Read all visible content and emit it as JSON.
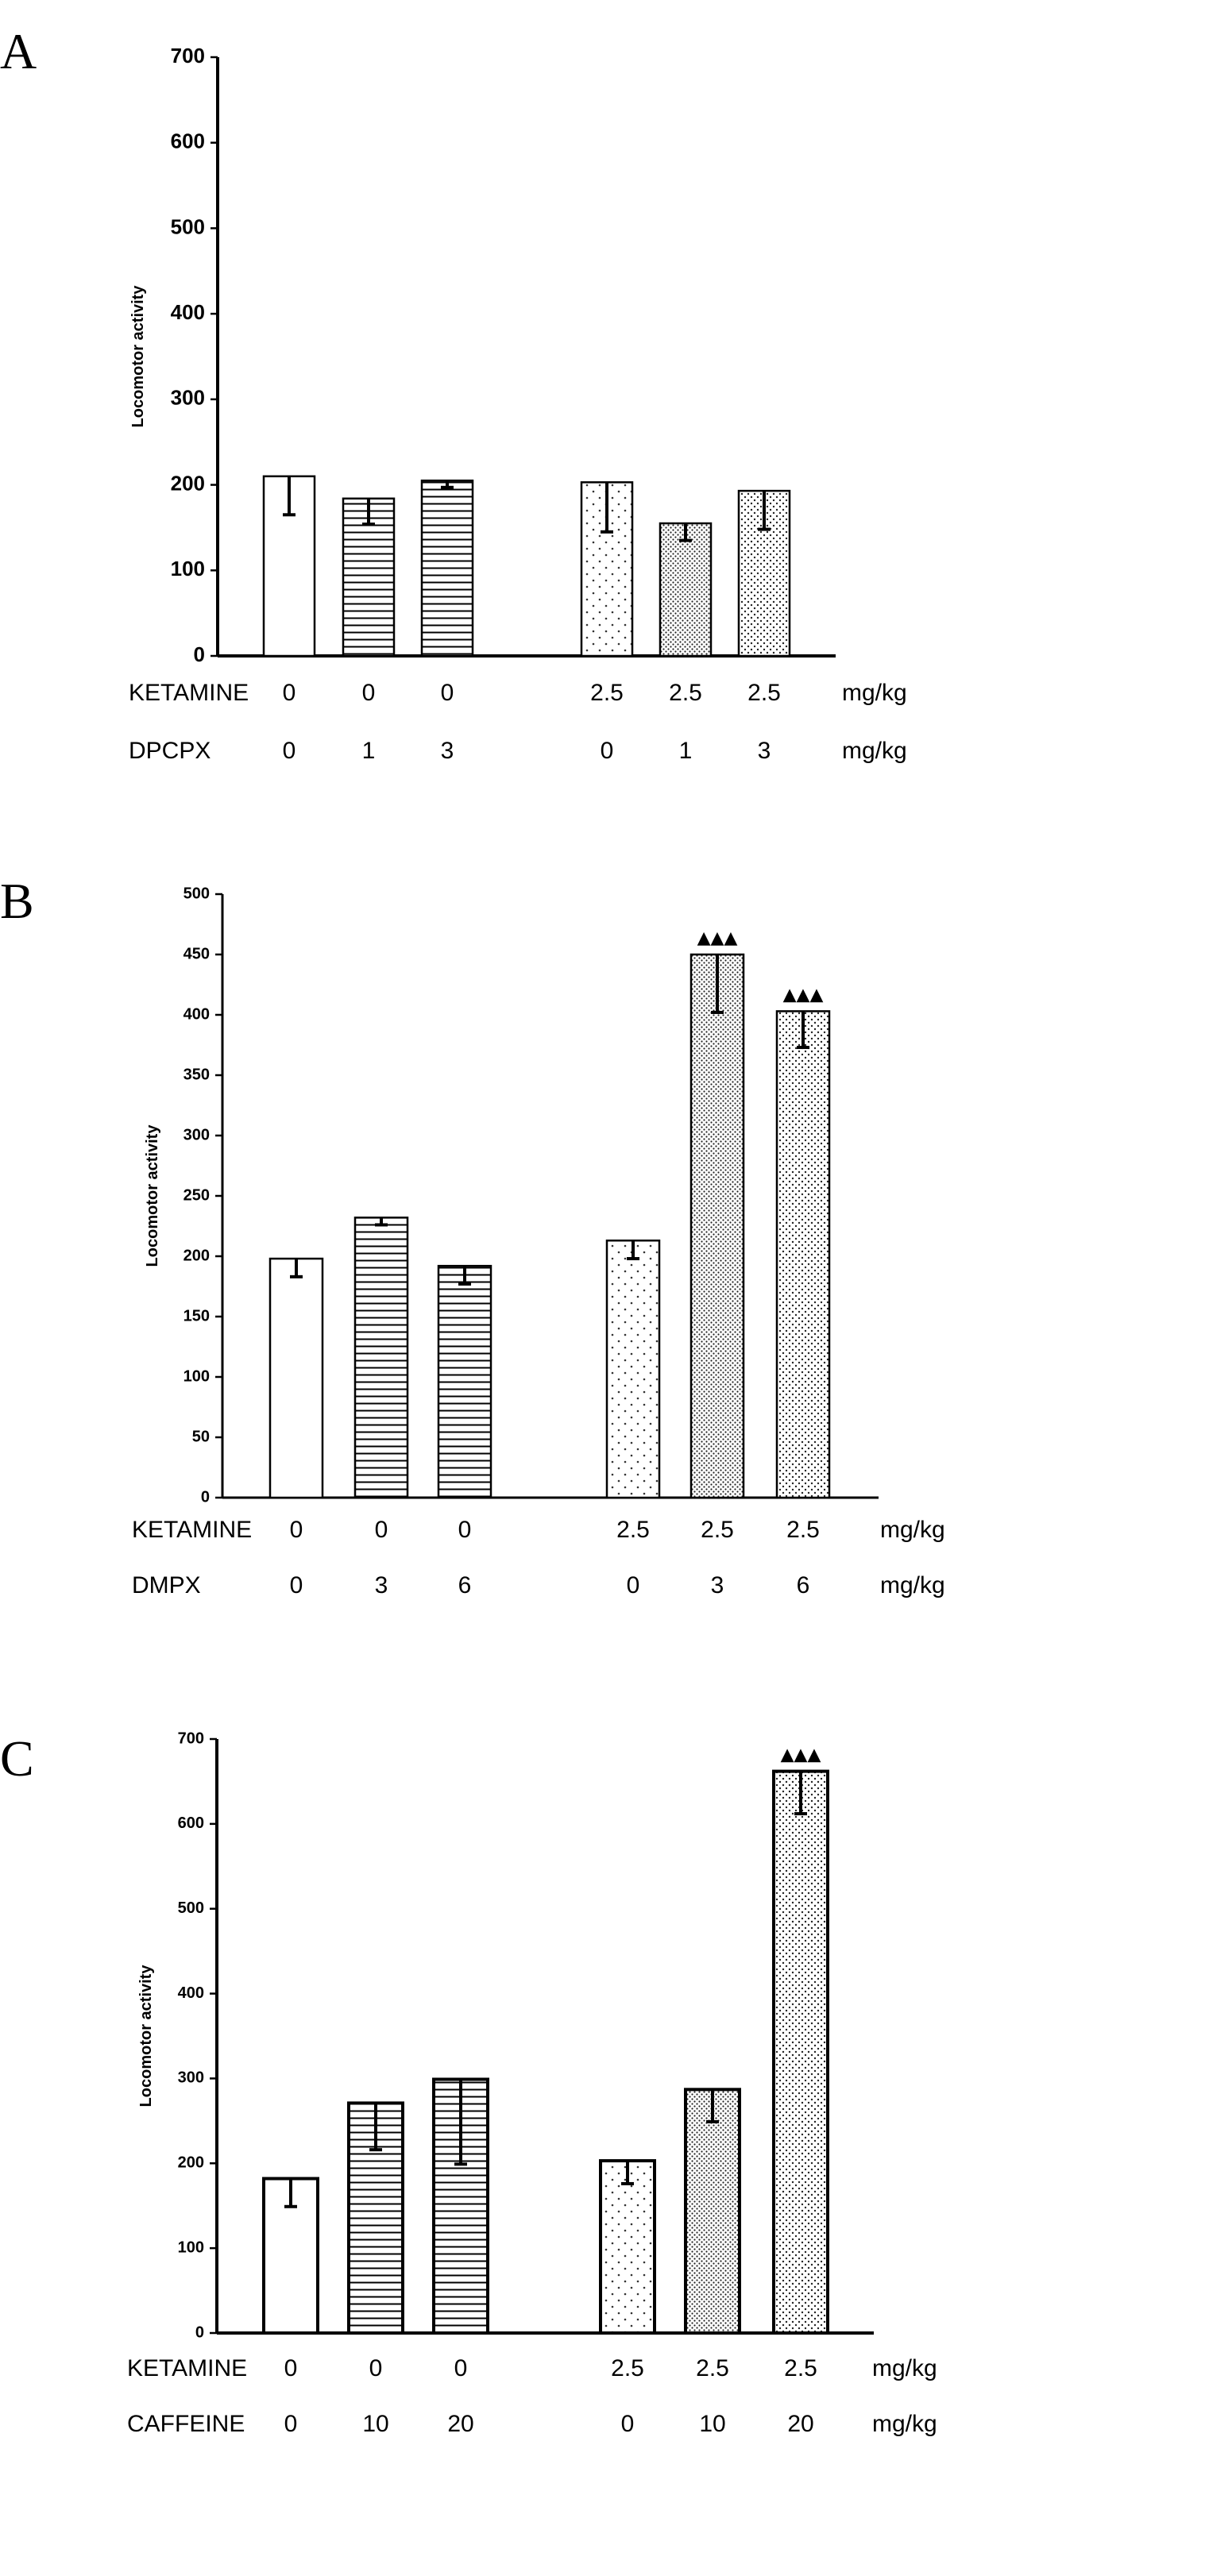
{
  "chart_data": [
    {
      "type": "bar",
      "panel_label": "A",
      "ylabel": "Locomotor activity",
      "ylim": [
        0,
        700
      ],
      "yticks": [
        0,
        100,
        200,
        300,
        400,
        500,
        600,
        700
      ],
      "bars": [
        {
          "value": 210,
          "error": 45,
          "pattern": "empty",
          "marker": ""
        },
        {
          "value": 184,
          "error": 30,
          "pattern": "horizontal",
          "marker": ""
        },
        {
          "value": 205,
          "error": 8,
          "pattern": "horizontal",
          "marker": ""
        },
        {
          "value": 203,
          "error": 58,
          "pattern": "dots-sparse",
          "marker": ""
        },
        {
          "value": 155,
          "error": 20,
          "pattern": "dots-dense",
          "marker": ""
        },
        {
          "value": 193,
          "error": 45,
          "pattern": "dots-medium",
          "marker": ""
        }
      ],
      "rows": [
        {
          "label": "KETAMINE",
          "values": [
            "0",
            "0",
            "0",
            "2.5",
            "2.5",
            "2.5"
          ],
          "unit": "mg/kg"
        },
        {
          "label": "DPCPX",
          "values": [
            "0",
            "1",
            "3",
            "0",
            "1",
            "3"
          ],
          "unit": "mg/kg"
        }
      ]
    },
    {
      "type": "bar",
      "panel_label": "B",
      "ylabel": "Locomotor activity",
      "ylim": [
        0,
        500
      ],
      "yticks": [
        0,
        50,
        100,
        150,
        200,
        250,
        300,
        350,
        400,
        450,
        500
      ],
      "bars": [
        {
          "value": 198,
          "error": 15,
          "pattern": "empty",
          "marker": ""
        },
        {
          "value": 232,
          "error": 6,
          "pattern": "horizontal",
          "marker": ""
        },
        {
          "value": 192,
          "error": 15,
          "pattern": "horizontal",
          "marker": ""
        },
        {
          "value": 213,
          "error": 15,
          "pattern": "dots-sparse",
          "marker": ""
        },
        {
          "value": 450,
          "error": 48,
          "pattern": "dots-dense",
          "marker": "▲▲▲"
        },
        {
          "value": 403,
          "error": 30,
          "pattern": "dots-medium",
          "marker": "▲▲▲"
        }
      ],
      "rows": [
        {
          "label": "KETAMINE",
          "values": [
            "0",
            "0",
            "0",
            "2.5",
            "2.5",
            "2.5"
          ],
          "unit": "mg/kg"
        },
        {
          "label": "DMPX",
          "values": [
            "0",
            "3",
            "6",
            "0",
            "3",
            "6"
          ],
          "unit": "mg/kg"
        }
      ]
    },
    {
      "type": "bar",
      "panel_label": "C",
      "ylabel": "Locomotor activity",
      "ylim": [
        0,
        700
      ],
      "yticks": [
        0,
        100,
        200,
        300,
        400,
        500,
        600,
        700
      ],
      "bars": [
        {
          "value": 182,
          "error": 33,
          "pattern": "empty",
          "marker": ""
        },
        {
          "value": 271,
          "error": 55,
          "pattern": "horizontal",
          "marker": ""
        },
        {
          "value": 299,
          "error": 100,
          "pattern": "horizontal",
          "marker": ""
        },
        {
          "value": 203,
          "error": 27,
          "pattern": "dots-sparse",
          "marker": ""
        },
        {
          "value": 287,
          "error": 38,
          "pattern": "dots-dense",
          "marker": ""
        },
        {
          "value": 662,
          "error": 50,
          "pattern": "dots-medium",
          "marker": "▲▲▲"
        }
      ],
      "rows": [
        {
          "label": "KETAMINE",
          "values": [
            "0",
            "0",
            "0",
            "2.5",
            "2.5",
            "2.5"
          ],
          "unit": "mg/kg"
        },
        {
          "label": "CAFFEINE",
          "values": [
            "0",
            "10",
            "20",
            "0",
            "10",
            "20"
          ],
          "unit": "mg/kg"
        }
      ]
    }
  ]
}
